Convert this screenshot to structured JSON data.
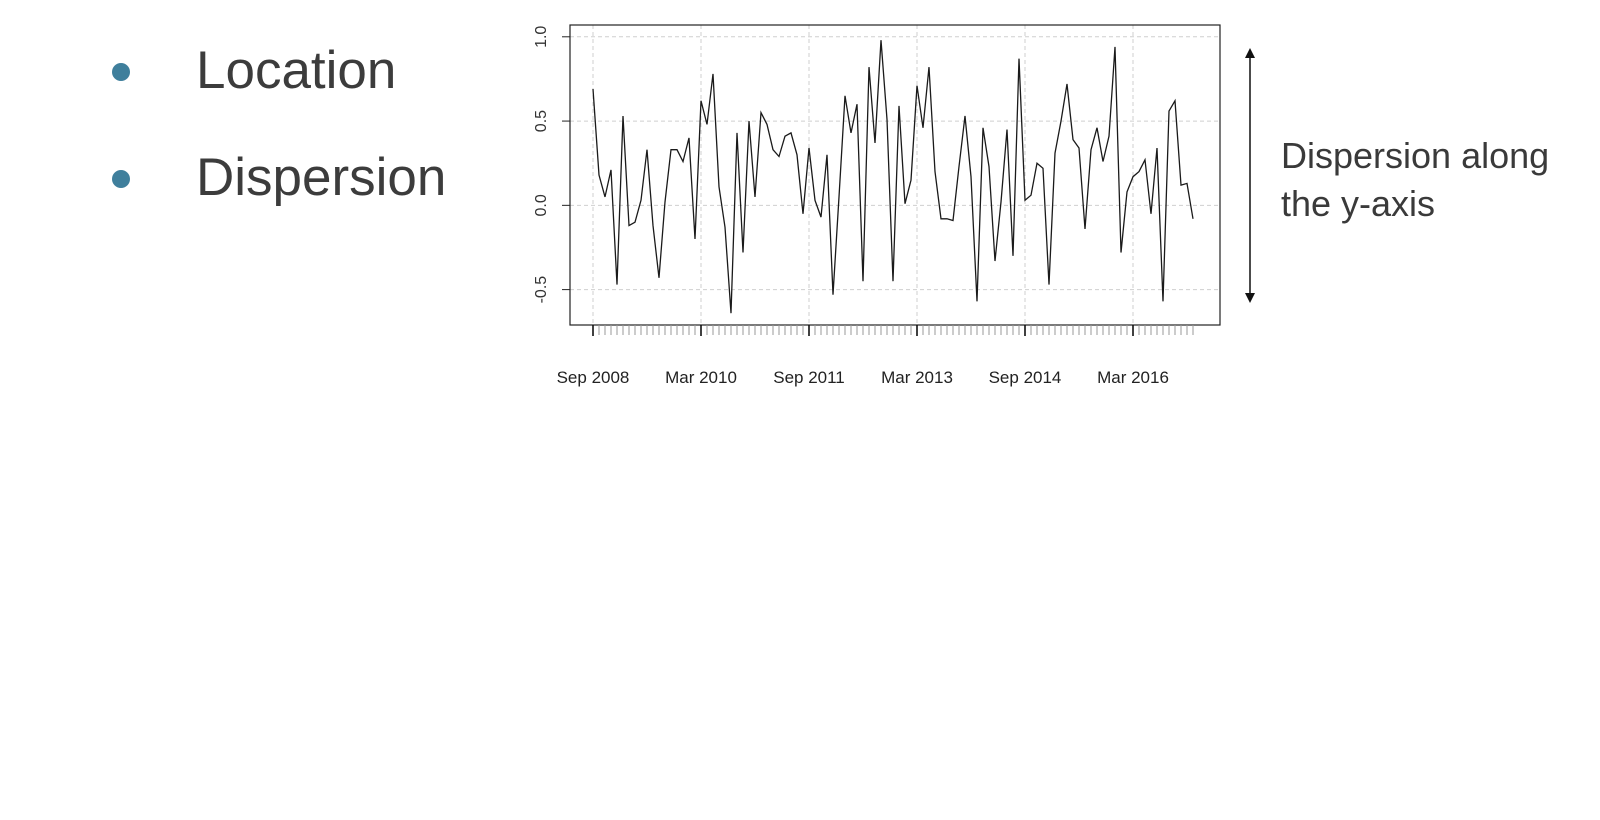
{
  "bullets": {
    "color": "#3f7f9c",
    "items": [
      {
        "label": "Location"
      },
      {
        "label": "Dispersion"
      }
    ]
  },
  "annotation": {
    "line1": "Dispersion along",
    "line2": "the y-axis"
  },
  "chart_data": {
    "type": "line",
    "title": "",
    "xlabel": "",
    "ylabel": "",
    "grid": true,
    "line_color": "#1a1a1a",
    "x_start": "2008-09",
    "x_end": "2017-02",
    "x_tick_labels": [
      "Sep 2008",
      "Mar 2010",
      "Sep 2011",
      "Mar 2013",
      "Sep 2014",
      "Mar 2016"
    ],
    "y_ticks": [
      -0.5,
      0.0,
      0.5,
      1.0
    ],
    "y_tick_labels": [
      "-0.5",
      "0.0",
      "0.5",
      "1.0"
    ],
    "ylim": [
      -0.71,
      1.07
    ],
    "series": [
      {
        "values": [
          0.69,
          0.18,
          0.05,
          0.21,
          -0.47,
          0.53,
          -0.12,
          -0.1,
          0.03,
          0.33,
          -0.12,
          -0.43,
          0.02,
          0.33,
          0.33,
          0.26,
          0.4,
          -0.2,
          0.62,
          0.48,
          0.78,
          0.11,
          -0.13,
          -0.64,
          0.43,
          -0.28,
          0.5,
          0.05,
          0.55,
          0.48,
          0.33,
          0.29,
          0.41,
          0.43,
          0.3,
          -0.05,
          0.34,
          0.03,
          -0.07,
          0.3,
          -0.53,
          0.05,
          0.65,
          0.43,
          0.6,
          -0.45,
          0.82,
          0.37,
          0.98,
          0.51,
          -0.45,
          0.59,
          0.01,
          0.15,
          0.71,
          0.46,
          0.82,
          0.2,
          -0.08,
          -0.08,
          -0.09,
          0.23,
          0.53,
          0.17,
          -0.57,
          0.46,
          0.23,
          -0.33,
          0.02,
          0.45,
          -0.3,
          0.87,
          0.03,
          0.06,
          0.25,
          0.22,
          -0.47,
          0.31,
          0.5,
          0.72,
          0.39,
          0.34,
          -0.14,
          0.33,
          0.46,
          0.26,
          0.41,
          0.94,
          -0.28,
          0.08,
          0.17,
          0.2,
          0.27,
          -0.05,
          0.34,
          -0.57,
          0.56,
          0.62,
          0.12,
          0.13,
          -0.08
        ]
      }
    ]
  }
}
